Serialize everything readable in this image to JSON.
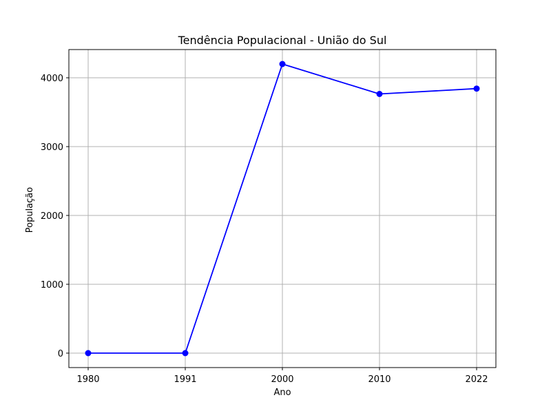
{
  "chart_data": {
    "type": "line",
    "title": "Tendência Populacional - União do Sul",
    "xlabel": "Ano",
    "ylabel": "População",
    "categories": [
      "1980",
      "1991",
      "2000",
      "2010",
      "2022"
    ],
    "series": [
      {
        "values": [
          0,
          0,
          4200,
          3765,
          3843
        ],
        "color": "#0000ff",
        "marker": "circle"
      }
    ],
    "yticks": [
      "0",
      "1000",
      "2000",
      "3000",
      "4000"
    ],
    "ylim": [
      -210,
      4410
    ],
    "grid": true
  }
}
